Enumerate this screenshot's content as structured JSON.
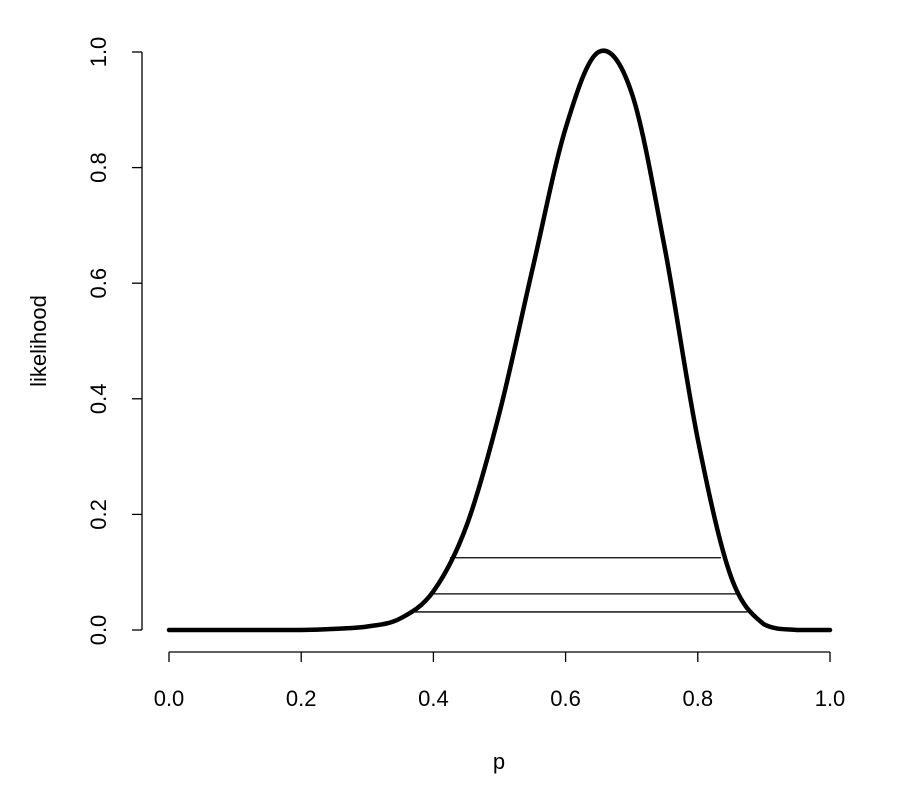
{
  "chart_data": {
    "type": "line",
    "xlabel": "p",
    "ylabel": "likelihood",
    "xlim": [
      0,
      1
    ],
    "ylim": [
      0,
      1
    ],
    "x_ticks": [
      "0.0",
      "0.2",
      "0.4",
      "0.6",
      "0.8",
      "1.0"
    ],
    "y_ticks": [
      "0.0",
      "0.2",
      "0.4",
      "0.6",
      "0.8",
      "1.0"
    ],
    "grid": false,
    "legend": "none",
    "series": [
      {
        "x": [
          0.0,
          0.05,
          0.1,
          0.15,
          0.2,
          0.25,
          0.3,
          0.35,
          0.4,
          0.45,
          0.5,
          0.55,
          0.6,
          0.65,
          0.7,
          0.75,
          0.8,
          0.85,
          0.9,
          0.95,
          1.0
        ],
        "values": [
          0.0,
          0.0,
          0.0,
          0.0,
          0.0,
          0.002,
          0.006,
          0.02,
          0.067,
          0.18,
          0.376,
          0.625,
          0.868,
          1.0,
          0.929,
          0.661,
          0.33,
          0.093,
          0.01,
          0.0,
          0.0
        ]
      }
    ],
    "horizontal_segments": [
      {
        "y": 0.125,
        "x_start": 0.425,
        "x_end": 0.835
      },
      {
        "y": 0.0625,
        "x_start": 0.395,
        "x_end": 0.86
      },
      {
        "y": 0.03125,
        "x_start": 0.365,
        "x_end": 0.875
      }
    ]
  }
}
